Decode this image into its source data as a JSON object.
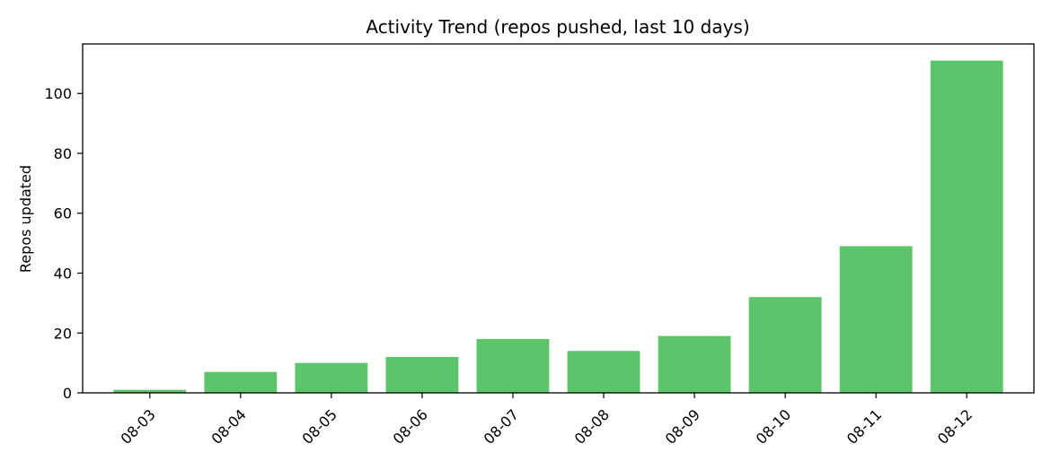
{
  "chart_data": {
    "type": "bar",
    "title": "Activity Trend (repos pushed, last 10 days)",
    "xlabel": "",
    "ylabel": "Repos updated",
    "categories": [
      "08-03",
      "08-04",
      "08-05",
      "08-06",
      "08-07",
      "08-08",
      "08-09",
      "08-10",
      "08-11",
      "08-12"
    ],
    "values": [
      1,
      7,
      10,
      12,
      18,
      14,
      19,
      32,
      49,
      111
    ],
    "ylim": [
      0,
      116.55
    ],
    "yticks": [
      0,
      20,
      40,
      60,
      80,
      100
    ],
    "grid": false,
    "legend": "none",
    "bar_color": "#5cc46a",
    "axis_color": "#000000"
  }
}
